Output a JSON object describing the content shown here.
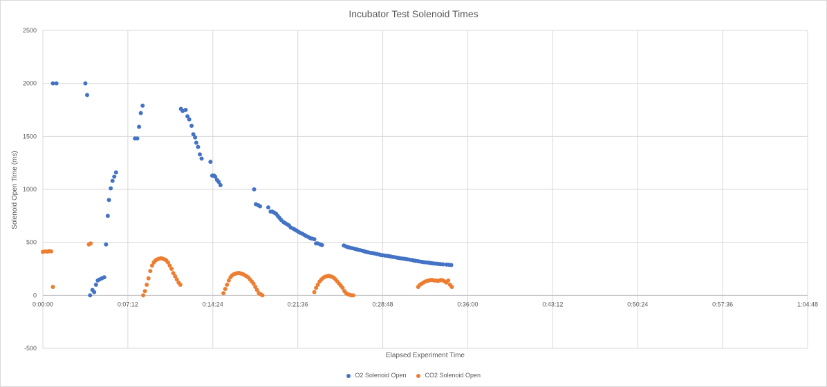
{
  "chart_data": {
    "type": "scatter",
    "title": "Incubator Test Solenoid Times",
    "xlabel": "Elapsed Experiment Time",
    "ylabel": "Solenoid Open Time (ms)",
    "ylim": [
      -500,
      2500
    ],
    "yticks": [
      -500,
      0,
      500,
      1000,
      1500,
      2000,
      2500
    ],
    "xlim_minutes": [
      0,
      64.8
    ],
    "xticks": [
      "0:00:00",
      "0:07:12",
      "0:14:24",
      "0:21:36",
      "0:28:48",
      "0:36:00",
      "0:43:12",
      "0:50:24",
      "0:57:36",
      "1:04:48"
    ],
    "grid": true,
    "legend_position": "bottom",
    "series": [
      {
        "name": "O2 Solenoid Open",
        "color": "#4472c4",
        "x_minutes": [
          0.85,
          1.15,
          3.6,
          3.75,
          4.0,
          4.2,
          4.35,
          4.5,
          4.65,
          4.8,
          5.0,
          5.2,
          5.35,
          5.5,
          5.6,
          5.75,
          5.9,
          6.05,
          6.2,
          7.8,
          8.0,
          8.15,
          8.3,
          8.45,
          11.7,
          11.85,
          12.1,
          12.25,
          12.4,
          12.6,
          12.75,
          12.9,
          13.0,
          13.15,
          13.3,
          13.45,
          14.2,
          14.35,
          14.5,
          14.6,
          14.75,
          14.9,
          15.05,
          17.9,
          18.05,
          18.25,
          18.4,
          19.1,
          19.3,
          19.45,
          19.6,
          19.75,
          19.9,
          20.05,
          20.2,
          20.4,
          20.55,
          20.7,
          20.85,
          21.0,
          21.2,
          21.35,
          21.5,
          21.65,
          21.8,
          22.0,
          22.15,
          22.3,
          22.5,
          22.65,
          22.8,
          23.0,
          23.15,
          23.3,
          23.5,
          23.65,
          25.5,
          25.7,
          25.85,
          26.0,
          26.2,
          26.4,
          26.55,
          26.7,
          26.9,
          27.1,
          27.25,
          27.4,
          27.6,
          27.8,
          27.95,
          28.1,
          28.3,
          28.5,
          28.65,
          28.8,
          29.0,
          29.2,
          29.35,
          29.5,
          29.7,
          29.9,
          30.05,
          30.2,
          30.4,
          30.6,
          30.75,
          30.9,
          31.1,
          31.3,
          31.45,
          31.6,
          31.8,
          32.0,
          32.15,
          32.3,
          32.5,
          32.7,
          32.85,
          33.0,
          33.2,
          33.4,
          33.55,
          33.7,
          33.9,
          34.2,
          34.4,
          34.6
        ],
        "y": [
          2000,
          2000,
          2000,
          1890,
          0,
          50,
          30,
          100,
          140,
          150,
          160,
          170,
          480,
          750,
          900,
          1010,
          1080,
          1120,
          1160,
          1480,
          1480,
          1590,
          1720,
          1790,
          1760,
          1740,
          1750,
          1690,
          1660,
          1600,
          1520,
          1490,
          1440,
          1400,
          1330,
          1290,
          1260,
          1130,
          1130,
          1120,
          1090,
          1070,
          1040,
          1000,
          860,
          850,
          840,
          830,
          790,
          790,
          780,
          770,
          750,
          730,
          710,
          690,
          680,
          670,
          660,
          640,
          630,
          620,
          610,
          600,
          590,
          580,
          570,
          560,
          550,
          540,
          535,
          530,
          490,
          490,
          480,
          475,
          470,
          460,
          455,
          450,
          445,
          440,
          435,
          430,
          425,
          420,
          415,
          410,
          405,
          400,
          398,
          395,
          390,
          385,
          380,
          378,
          375,
          372,
          370,
          365,
          362,
          358,
          355,
          352,
          348,
          345,
          342,
          340,
          336,
          332,
          328,
          325,
          322,
          318,
          315,
          312,
          310,
          308,
          305,
          302,
          300,
          298,
          296,
          294,
          292,
          290,
          288,
          286
        ]
      },
      {
        "name": "CO2 Solenoid Open",
        "color": "#ed7d31",
        "x_minutes": [
          0.0,
          0.2,
          0.4,
          0.55,
          0.7,
          0.85,
          3.9,
          4.05,
          8.5,
          8.65,
          8.8,
          8.95,
          9.1,
          9.25,
          9.4,
          9.55,
          9.7,
          9.85,
          10.0,
          10.15,
          10.3,
          10.45,
          10.6,
          10.75,
          10.9,
          11.05,
          11.2,
          11.35,
          11.5,
          11.65,
          15.3,
          15.45,
          15.6,
          15.75,
          15.9,
          16.05,
          16.2,
          16.35,
          16.5,
          16.65,
          16.8,
          16.95,
          17.1,
          17.25,
          17.4,
          17.55,
          17.7,
          17.85,
          18.0,
          18.15,
          18.3,
          18.45,
          18.6,
          23.0,
          23.15,
          23.3,
          23.45,
          23.6,
          23.75,
          23.9,
          24.05,
          24.2,
          24.35,
          24.5,
          24.65,
          24.8,
          24.95,
          25.1,
          25.25,
          25.4,
          25.55,
          25.7,
          25.85,
          26.0,
          26.15,
          26.3,
          31.8,
          31.95,
          32.1,
          32.25,
          32.4,
          32.55,
          32.7,
          32.85,
          33.0,
          33.15,
          33.3,
          33.45,
          33.6,
          33.75,
          33.9,
          34.05,
          34.2,
          34.35,
          34.5,
          34.65
        ],
        "y": [
          410,
          415,
          412,
          418,
          415,
          80,
          480,
          490,
          0,
          40,
          100,
          160,
          230,
          280,
          310,
          330,
          340,
          345,
          350,
          345,
          340,
          330,
          310,
          280,
          250,
          210,
          180,
          150,
          120,
          100,
          20,
          60,
          100,
          140,
          170,
          190,
          200,
          205,
          210,
          210,
          205,
          200,
          190,
          180,
          170,
          150,
          130,
          110,
          80,
          50,
          20,
          10,
          0,
          30,
          70,
          100,
          130,
          150,
          165,
          175,
          180,
          185,
          180,
          175,
          165,
          150,
          130,
          110,
          90,
          70,
          40,
          20,
          10,
          5,
          0,
          0,
          80,
          100,
          110,
          120,
          130,
          135,
          140,
          145,
          145,
          140,
          140,
          135,
          140,
          145,
          140,
          130,
          120,
          140,
          100,
          80
        ]
      }
    ]
  }
}
